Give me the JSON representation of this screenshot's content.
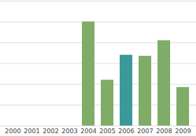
{
  "chart_data": {
    "type": "bar",
    "categories": [
      "2000",
      "2001",
      "2002",
      "2003",
      "2004",
      "2005",
      "2006",
      "2007",
      "2008",
      "2009"
    ],
    "values": [
      null,
      null,
      null,
      null,
      5.0,
      2.2,
      3.4,
      3.35,
      4.1,
      1.85
    ],
    "colors": [
      "#7fad68",
      "#7fad68",
      "#7fad68",
      "#7fad68",
      "#7fad68",
      "#7fad68",
      "#3a9a9a",
      "#7fad68",
      "#7fad68",
      "#7fad68"
    ],
    "ylim": [
      0,
      6
    ],
    "yticks": [
      0,
      1,
      2,
      3,
      4,
      5,
      6
    ],
    "grid": true,
    "tick_labels": "x"
  }
}
